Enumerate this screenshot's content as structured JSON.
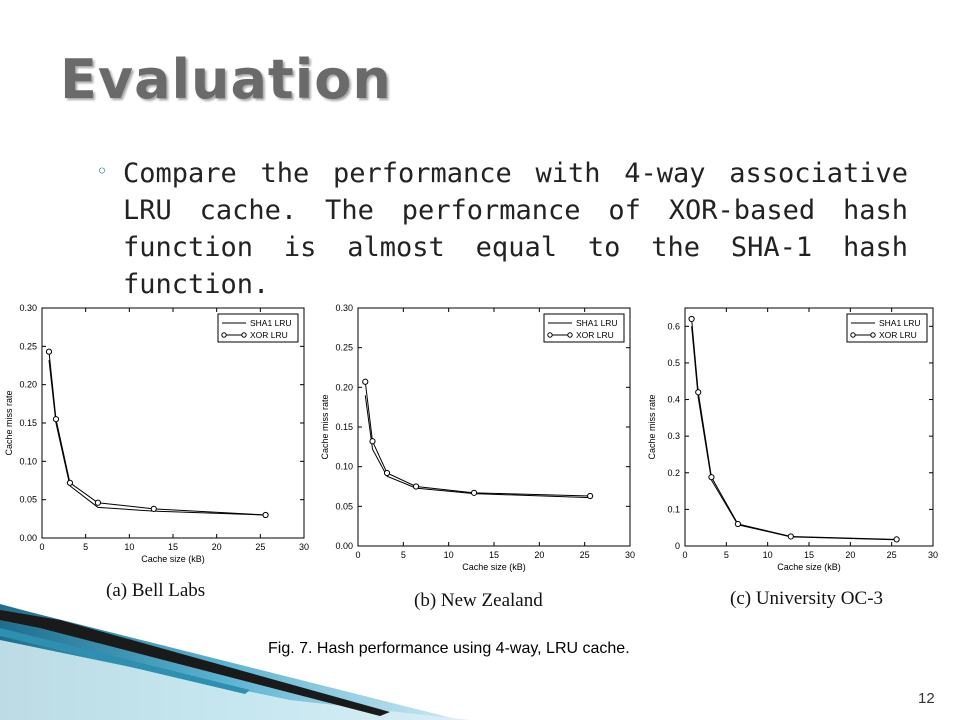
{
  "title": "Evaluation",
  "bullet": "Compare the performance with 4-way associative LRU cache. The performance of XOR-based hash function is almost equal to the SHA-1 hash function.",
  "figure_caption": "Fig. 7. Hash performance using 4-way, LRU cache.",
  "page_number": "12",
  "chart_data": [
    {
      "type": "line",
      "caption": "(a) Bell Labs",
      "xlabel": "Cache size (kB)",
      "ylabel": "Cache miss rate",
      "xlim": [
        0,
        30
      ],
      "ylim": [
        0,
        0.3
      ],
      "xticks": [
        0,
        5,
        10,
        15,
        20,
        25,
        30
      ],
      "yticks": [
        0.0,
        0.05,
        0.1,
        0.15,
        0.2,
        0.25,
        0.3
      ],
      "ytick_labels": [
        "0.00",
        "0.05",
        "0.10",
        "0.15",
        "0.20",
        "0.25",
        "0.30"
      ],
      "legend_position": "top-right",
      "series": [
        {
          "name": "SHA1 LRU",
          "marker": "none",
          "x": [
            0.8,
            1.6,
            3.2,
            6.4,
            12.8,
            25.6
          ],
          "y": [
            0.232,
            0.15,
            0.068,
            0.04,
            0.035,
            0.03
          ]
        },
        {
          "name": "XOR LRU",
          "marker": "circle",
          "x": [
            0.8,
            1.6,
            3.2,
            6.4,
            12.8,
            25.6
          ],
          "y": [
            0.243,
            0.155,
            0.072,
            0.046,
            0.038,
            0.03
          ]
        }
      ]
    },
    {
      "type": "line",
      "caption": "(b) New Zealand",
      "xlabel": "Cache size (kB)",
      "ylabel": "Cache miss rate",
      "xlim": [
        0,
        30
      ],
      "ylim": [
        0,
        0.3
      ],
      "xticks": [
        0,
        5,
        10,
        15,
        20,
        25,
        30
      ],
      "yticks": [
        0.0,
        0.05,
        0.1,
        0.15,
        0.2,
        0.25,
        0.3
      ],
      "ytick_labels": [
        "0.00",
        "0.05",
        "0.10",
        "0.15",
        "0.20",
        "0.25",
        "0.30"
      ],
      "legend_position": "top-right",
      "series": [
        {
          "name": "SHA1 LRU",
          "marker": "none",
          "x": [
            0.8,
            1.6,
            3.2,
            6.4,
            12.8,
            25.6
          ],
          "y": [
            0.19,
            0.122,
            0.088,
            0.073,
            0.066,
            0.061
          ]
        },
        {
          "name": "XOR LRU",
          "marker": "circle",
          "x": [
            0.8,
            1.6,
            3.2,
            6.4,
            12.8,
            25.6
          ],
          "y": [
            0.207,
            0.132,
            0.092,
            0.075,
            0.067,
            0.063
          ]
        }
      ]
    },
    {
      "type": "line",
      "caption": "(c) University OC-3",
      "xlabel": "Cache size (kB)",
      "ylabel": "Cache miss rate",
      "xlim": [
        0,
        30
      ],
      "ylim": [
        0,
        0.65
      ],
      "xticks": [
        0,
        5,
        10,
        15,
        20,
        25,
        30
      ],
      "yticks": [
        0,
        0.1,
        0.2,
        0.3,
        0.4,
        0.5,
        0.6
      ],
      "ytick_labels": [
        "0",
        "0.1",
        "0.2",
        "0.3",
        "0.4",
        "0.5",
        "0.6"
      ],
      "legend_position": "top-right",
      "series": [
        {
          "name": "SHA1 LRU",
          "marker": "none",
          "x": [
            0.8,
            1.6,
            3.2,
            6.4,
            12.8,
            25.6
          ],
          "y": [
            0.6,
            0.405,
            0.18,
            0.058,
            0.025,
            0.017
          ]
        },
        {
          "name": "XOR LRU",
          "marker": "circle",
          "x": [
            0.8,
            1.6,
            3.2,
            6.4,
            12.8,
            25.6
          ],
          "y": [
            0.62,
            0.42,
            0.188,
            0.06,
            0.026,
            0.018
          ]
        }
      ]
    }
  ]
}
